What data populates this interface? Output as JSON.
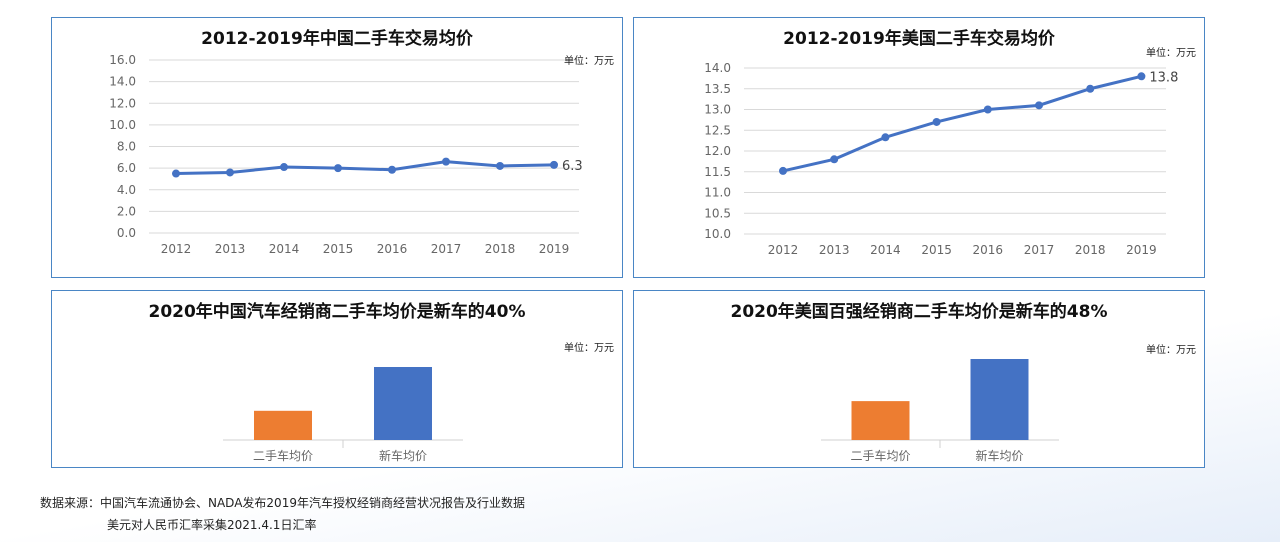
{
  "unit_label": "单位：万元",
  "chart_data": [
    {
      "type": "line",
      "title": "2012-2019年中国二手车交易均价",
      "categories": [
        "2012",
        "2013",
        "2014",
        "2015",
        "2016",
        "2017",
        "2018",
        "2019"
      ],
      "values": [
        5.5,
        5.6,
        6.1,
        6.0,
        5.85,
        6.6,
        6.2,
        6.3
      ],
      "data_label": "6.3",
      "yticks": [
        "0.0",
        "2.0",
        "4.0",
        "6.0",
        "8.0",
        "10.0",
        "12.0",
        "14.0",
        "16.0"
      ],
      "ylim": [
        0,
        16
      ],
      "grid": true,
      "color": "#4472c4"
    },
    {
      "type": "line",
      "title": "2012-2019年美国二手车交易均价",
      "categories": [
        "2012",
        "2013",
        "2014",
        "2015",
        "2016",
        "2017",
        "2018",
        "2019"
      ],
      "values": [
        11.52,
        11.8,
        12.33,
        12.7,
        13.0,
        13.1,
        13.5,
        13.8
      ],
      "data_label": "13.8",
      "yticks": [
        "10.0",
        "10.5",
        "11.0",
        "11.5",
        "12.0",
        "12.5",
        "13.0",
        "13.5",
        "14.0"
      ],
      "ylim": [
        10,
        14
      ],
      "grid": true,
      "color": "#4472c4"
    },
    {
      "type": "bar",
      "title": "2020年中国汽车经销商二手车均价是新车的40%",
      "categories": [
        "二手车均价",
        "新车均价"
      ],
      "values": [
        40,
        100
      ],
      "colors": [
        "#ed7d31",
        "#4472c4"
      ]
    },
    {
      "type": "bar",
      "title": "2020年美国百强经销商二手车均价是新车的48%",
      "categories": [
        "二手车均价",
        "新车均价"
      ],
      "values": [
        48,
        100
      ],
      "colors": [
        "#ed7d31",
        "#4472c4"
      ]
    }
  ],
  "footer": {
    "line1": "数据来源：中国汽车流通协会、NADA发布2019年汽车授权经销商经营状况报告及行业数据",
    "line2": "美元对人民币汇率采集2021.4.1日汇率"
  }
}
